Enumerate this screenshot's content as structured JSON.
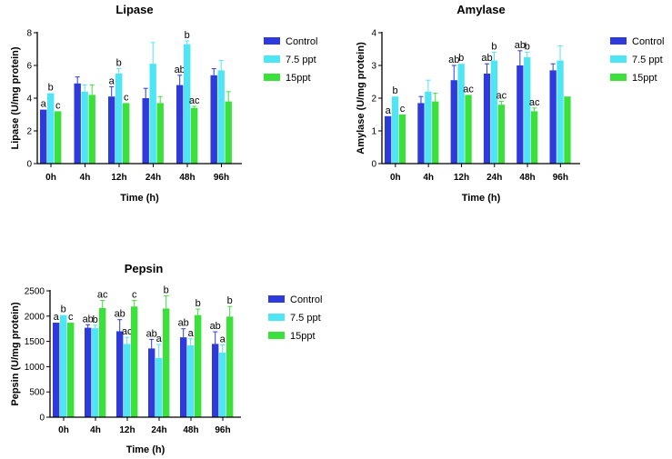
{
  "chart_data": [
    {
      "type": "bar",
      "title": "Lipase",
      "xlabel": "Time (h)",
      "ylabel": "Lipase (U/mg protein)",
      "ylim": [
        0,
        8
      ],
      "yticks": [
        0,
        2,
        4,
        6,
        8
      ],
      "categories": [
        "0h",
        "4h",
        "12h",
        "24h",
        "48h",
        "96h"
      ],
      "legend_position": "right",
      "grid": false,
      "series": [
        {
          "name": "Control",
          "color": "#2e3adb",
          "values": [
            3.3,
            4.9,
            4.1,
            4.0,
            4.8,
            5.4
          ],
          "errors": [
            0.0,
            0.4,
            0.6,
            0.6,
            0.6,
            0.4
          ],
          "letters": [
            "a",
            "",
            "a",
            "",
            "ab",
            ""
          ]
        },
        {
          "name": "7.5 ppt",
          "color": "#4ee6f5",
          "values": [
            4.3,
            4.4,
            5.5,
            6.1,
            7.3,
            5.7
          ],
          "errors": [
            0.0,
            0.4,
            0.3,
            1.3,
            0.2,
            0.6
          ],
          "letters": [
            "b",
            "",
            "b",
            "",
            "b",
            ""
          ]
        },
        {
          "name": "15ppt",
          "color": "#3be03b",
          "values": [
            3.2,
            4.2,
            3.7,
            3.7,
            3.4,
            3.8
          ],
          "errors": [
            0.0,
            0.6,
            0.0,
            0.4,
            0.1,
            0.6
          ],
          "letters": [
            "c",
            "",
            "c",
            "",
            "ac",
            ""
          ]
        }
      ]
    },
    {
      "type": "bar",
      "title": "Amylase",
      "xlabel": "Time (h)",
      "ylabel": "Amylase (U/mg protein)",
      "ylim": [
        0,
        4
      ],
      "yticks": [
        0,
        1,
        2,
        3,
        4
      ],
      "categories": [
        "0h",
        "4h",
        "12h",
        "24h",
        "48h",
        "96h"
      ],
      "legend_position": "right",
      "grid": false,
      "series": [
        {
          "name": "Control",
          "color": "#2e3adb",
          "values": [
            1.45,
            1.85,
            2.55,
            2.75,
            3.0,
            2.85
          ],
          "errors": [
            0.0,
            0.2,
            0.45,
            0.3,
            0.45,
            0.2
          ],
          "letters": [
            "a",
            "",
            "ab",
            "ab",
            "ab",
            ""
          ]
        },
        {
          "name": "7.5 ppt",
          "color": "#4ee6f5",
          "values": [
            2.05,
            2.2,
            3.05,
            3.15,
            3.25,
            3.15
          ],
          "errors": [
            0.0,
            0.35,
            0.0,
            0.25,
            0.15,
            0.45
          ],
          "letters": [
            "b",
            "",
            "b",
            "b",
            "b",
            ""
          ]
        },
        {
          "name": "15ppt",
          "color": "#3be03b",
          "values": [
            1.5,
            1.9,
            2.1,
            1.8,
            1.6,
            2.05
          ],
          "errors": [
            0.0,
            0.25,
            0.0,
            0.1,
            0.1,
            0.0
          ],
          "letters": [
            "c",
            "",
            "ac",
            "ac",
            "ac",
            ""
          ]
        }
      ]
    },
    {
      "type": "bar",
      "title": "Pepsin",
      "xlabel": "Time (h)",
      "ylabel": "Pepsin (U/mg protein)",
      "ylim": [
        0,
        2500
      ],
      "yticks": [
        0,
        500,
        1000,
        1500,
        2000,
        2500
      ],
      "categories": [
        "0h",
        "4h",
        "12h",
        "24h",
        "48h",
        "96h"
      ],
      "legend_position": "right",
      "grid": false,
      "series": [
        {
          "name": "Control",
          "color": "#2e3adb",
          "values": [
            1870,
            1770,
            1700,
            1360,
            1580,
            1450
          ],
          "errors": [
            0,
            60,
            230,
            180,
            170,
            240
          ],
          "letters": [
            "a",
            "ab",
            "ab",
            "ab",
            "ab",
            "ab"
          ]
        },
        {
          "name": "7.5 ppt",
          "color": "#4ee6f5",
          "values": [
            2020,
            1760,
            1450,
            1170,
            1420,
            1280
          ],
          "errors": [
            0,
            60,
            130,
            270,
            130,
            150
          ],
          "letters": [
            "b",
            "b",
            "ac",
            "a",
            "a",
            "a"
          ]
        },
        {
          "name": "15ppt",
          "color": "#3be03b",
          "values": [
            1870,
            2160,
            2190,
            2150,
            2020,
            1990
          ],
          "errors": [
            0,
            150,
            120,
            250,
            120,
            200
          ],
          "letters": [
            "c",
            "ac",
            "c",
            "b",
            "b",
            "b"
          ]
        }
      ]
    }
  ]
}
